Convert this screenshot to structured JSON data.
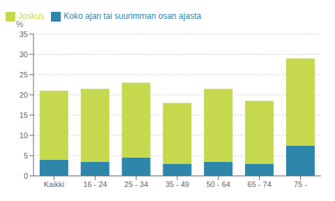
{
  "chart_data": {
    "type": "bar",
    "stacked": true,
    "ylabel": "%",
    "categories": [
      "Kaikki",
      "16 - 24",
      "25 - 34",
      "35 - 49",
      "50 - 64",
      "65 - 74",
      "75 -"
    ],
    "series": [
      {
        "name": "Koko ajan tai suurimman osan ajasta",
        "color": "#2e86ab",
        "values": [
          4.0,
          3.5,
          4.5,
          3.0,
          3.5,
          3.0,
          7.5
        ]
      },
      {
        "name": "Joskus",
        "color": "#c5d84e",
        "values": [
          17.0,
          18.0,
          18.5,
          15.0,
          18.0,
          15.5,
          21.5
        ]
      }
    ],
    "ylim": [
      0,
      35
    ],
    "yticks": [
      0,
      5,
      10,
      15,
      20,
      25,
      30,
      35
    ],
    "grid": true,
    "legend": "upper left"
  }
}
